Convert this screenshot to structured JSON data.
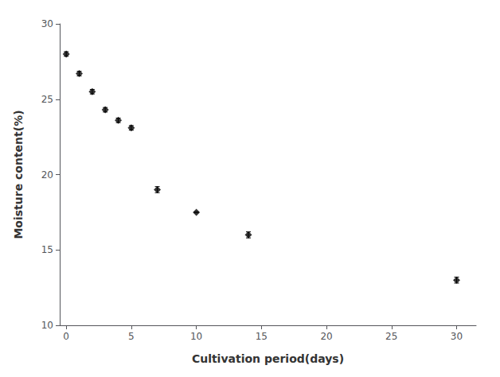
{
  "chart_data": {
    "type": "scatter",
    "x": [
      0,
      1,
      2,
      3,
      4,
      5,
      7,
      10,
      14,
      30
    ],
    "values": [
      28.0,
      26.7,
      25.5,
      24.3,
      23.6,
      23.1,
      19.0,
      17.5,
      16.0,
      13.0
    ],
    "yerr": [
      0.15,
      0.15,
      0.15,
      0.15,
      0.15,
      0.15,
      0.2,
      0.0,
      0.2,
      0.2
    ],
    "xlabel": "Cultivation period(days)",
    "ylabel": "Moisture content(%)",
    "xlim": [
      -0.5,
      31.5
    ],
    "ylim": [
      10,
      30
    ],
    "xticks": [
      0,
      5,
      10,
      15,
      20,
      25,
      30
    ],
    "yticks": [
      10,
      15,
      20,
      25,
      30
    ],
    "marker": "diamond",
    "color": "#000000",
    "grid": false
  }
}
